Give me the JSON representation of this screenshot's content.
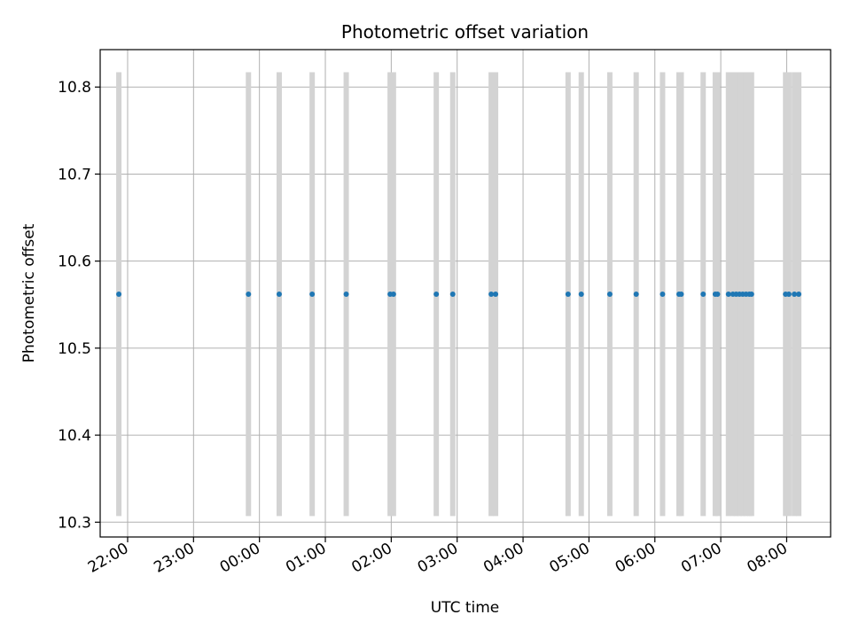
{
  "chart_data": {
    "type": "scatter",
    "title": "Photometric offset variation",
    "xlabel": "UTC time",
    "ylabel": "Photometric offset",
    "xlim": [
      "2023-01-01T21:35",
      "2023-01-02T08:40"
    ],
    "ylim": [
      10.283,
      10.843
    ],
    "grid": true,
    "x_ticks": [
      "22:00",
      "23:00",
      "00:00",
      "01:00",
      "02:00",
      "03:00",
      "04:00",
      "05:00",
      "06:00",
      "07:00",
      "08:00"
    ],
    "x_tick_times": [
      "2023-01-01T22:00",
      "2023-01-01T23:00",
      "2023-01-02T00:00",
      "2023-01-02T01:00",
      "2023-01-02T02:00",
      "2023-01-02T03:00",
      "2023-01-02T04:00",
      "2023-01-02T05:00",
      "2023-01-02T06:00",
      "2023-01-02T07:00",
      "2023-01-02T08:00"
    ],
    "y_ticks": [
      "10.3",
      "10.4",
      "10.5",
      "10.6",
      "10.7",
      "10.8"
    ],
    "y_tick_values": [
      10.3,
      10.4,
      10.5,
      10.6,
      10.7,
      10.8
    ],
    "band_range": [
      10.307,
      10.817
    ],
    "band_color": "#d3d3d3",
    "point_color": "#1f77b4",
    "points": [
      {
        "x": "2023-01-01T21:52",
        "y": 10.562
      },
      {
        "x": "2023-01-01T23:50",
        "y": 10.562
      },
      {
        "x": "2023-01-02T00:18",
        "y": 10.562
      },
      {
        "x": "2023-01-02T00:48",
        "y": 10.562
      },
      {
        "x": "2023-01-02T01:19",
        "y": 10.562
      },
      {
        "x": "2023-01-02T01:59",
        "y": 10.562
      },
      {
        "x": "2023-01-02T02:02",
        "y": 10.562
      },
      {
        "x": "2023-01-02T02:41",
        "y": 10.562
      },
      {
        "x": "2023-01-02T02:56",
        "y": 10.562
      },
      {
        "x": "2023-01-02T03:31",
        "y": 10.562
      },
      {
        "x": "2023-01-02T03:35",
        "y": 10.562
      },
      {
        "x": "2023-01-02T04:41",
        "y": 10.562
      },
      {
        "x": "2023-01-02T04:53",
        "y": 10.562
      },
      {
        "x": "2023-01-02T05:19",
        "y": 10.562
      },
      {
        "x": "2023-01-02T05:43",
        "y": 10.562
      },
      {
        "x": "2023-01-02T06:07",
        "y": 10.562
      },
      {
        "x": "2023-01-02T06:22",
        "y": 10.562
      },
      {
        "x": "2023-01-02T06:24",
        "y": 10.562
      },
      {
        "x": "2023-01-02T06:44",
        "y": 10.562
      },
      {
        "x": "2023-01-02T06:55",
        "y": 10.562
      },
      {
        "x": "2023-01-02T06:57",
        "y": 10.562
      },
      {
        "x": "2023-01-02T07:07",
        "y": 10.562
      },
      {
        "x": "2023-01-02T07:11",
        "y": 10.562
      },
      {
        "x": "2023-01-02T07:14",
        "y": 10.562
      },
      {
        "x": "2023-01-02T07:17",
        "y": 10.562
      },
      {
        "x": "2023-01-02T07:20",
        "y": 10.562
      },
      {
        "x": "2023-01-02T07:23",
        "y": 10.562
      },
      {
        "x": "2023-01-02T07:26",
        "y": 10.562
      },
      {
        "x": "2023-01-02T07:28",
        "y": 10.562
      },
      {
        "x": "2023-01-02T07:59",
        "y": 10.562
      },
      {
        "x": "2023-01-02T08:02",
        "y": 10.562
      },
      {
        "x": "2023-01-02T08:07",
        "y": 10.562
      },
      {
        "x": "2023-01-02T08:11",
        "y": 10.562
      }
    ]
  }
}
